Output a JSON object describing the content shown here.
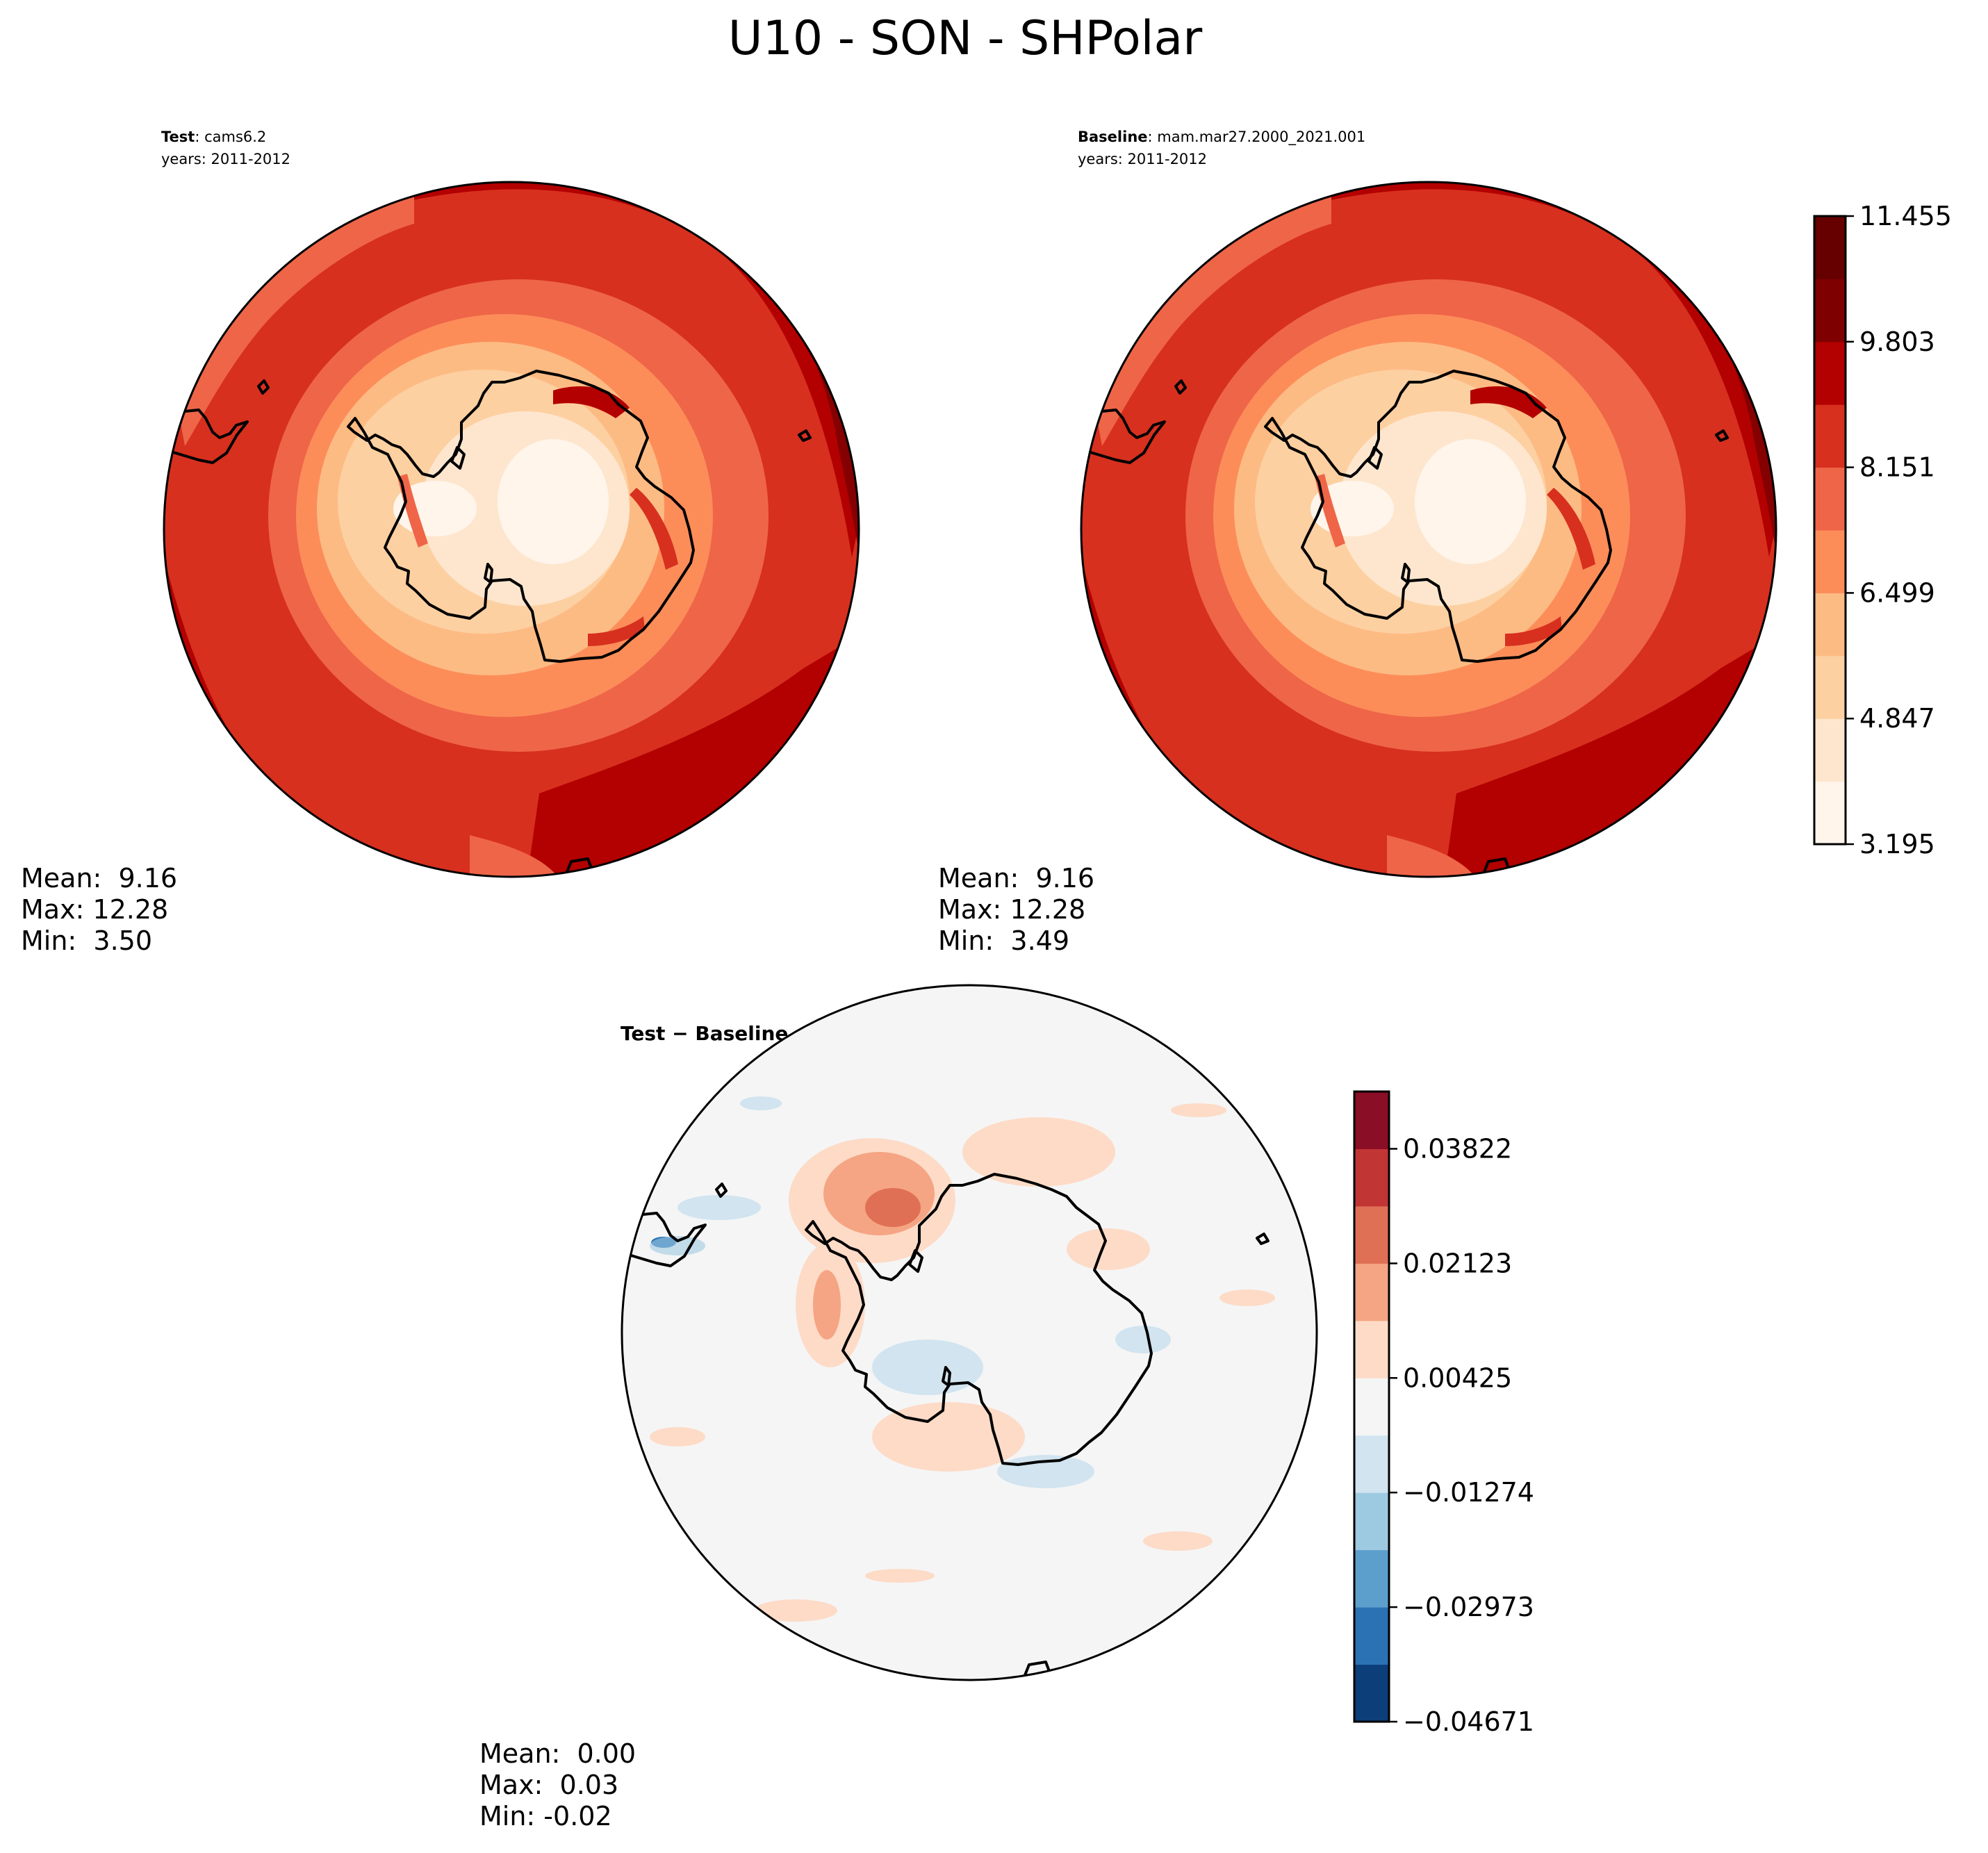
{
  "figure": {
    "title": "U10 - SON - SHPolar"
  },
  "panels": {
    "test": {
      "label_bold": "Test",
      "label_rest": ": cams6.2",
      "years": "years: 2011-2012",
      "stats": [
        "Mean:  9.16",
        "Max: 12.28",
        "Min:  3.50"
      ]
    },
    "baseline": {
      "label_bold": "Baseline",
      "label_rest": ": mam.mar27.2000_2021.001",
      "years": "years: 2011-2012",
      "stats": [
        "Mean:  9.16",
        "Max: 12.28",
        "Min:  3.49"
      ]
    },
    "diff": {
      "label_bold": "Test − Baseline",
      "stats": [
        "Mean:  0.00",
        "Max:  0.03",
        "Min: -0.02"
      ]
    }
  },
  "colorbars": {
    "wind": {
      "colormap": "Reds",
      "colors": [
        "#fff5eb",
        "#fee6ce",
        "#fdd0a2",
        "#fdbb84",
        "#fc8d59",
        "#ef6548",
        "#d7301f",
        "#b30000",
        "#7f0000",
        "#660000"
      ],
      "tick_labels": [
        "3.195",
        "4.847",
        "6.499",
        "8.151",
        "9.803",
        "11.455"
      ],
      "tick_positions": [
        0,
        2,
        4,
        6,
        8,
        10
      ],
      "levels": 11
    },
    "diff": {
      "colormap": "RdBu_r",
      "colors": [
        "#0c3f79",
        "#2a72b3",
        "#5c9fcd",
        "#9ecae1",
        "#d1e4f0",
        "#f5f5f5",
        "#fddbc7",
        "#f5a583",
        "#e07055",
        "#c23535",
        "#8a0e25"
      ],
      "tick_labels": [
        "−0.04671",
        "−0.02973",
        "−0.01274",
        "0.00425",
        "0.02123",
        "0.03822"
      ],
      "tick_positions": [
        0,
        2,
        4,
        6,
        8,
        10
      ],
      "levels": 11
    }
  }
}
